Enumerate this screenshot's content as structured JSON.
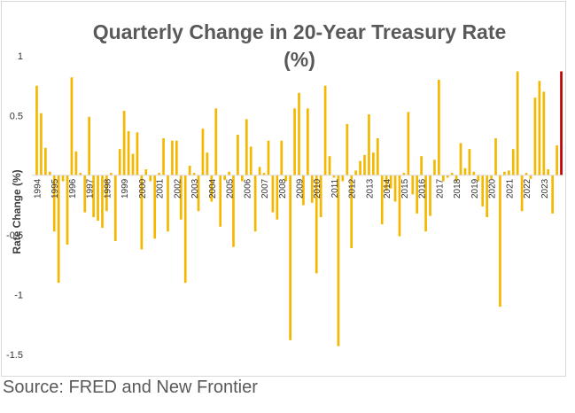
{
  "source_note": "Source: FRED and New Frontier",
  "colors": {
    "bar": "#f5b800",
    "highlight": "#c00000",
    "axis": "#d9d9d9",
    "title": "#595959"
  },
  "chart_data": {
    "type": "bar",
    "title_line1": "Quarterly Change in 20-Year Treasury Rate",
    "title_line2": "(%)",
    "ylabel": "Rate Change (%)",
    "xlabel": "",
    "ylim": [
      -1.5,
      1
    ],
    "yticks": [
      1,
      0.5,
      -0.5,
      -1,
      -1.5
    ],
    "ytick_labels": [
      "1",
      "0.5",
      "-0.5",
      "-1",
      "-1.5"
    ],
    "grid": false,
    "legend": "none",
    "start_year": 1994,
    "year_labels": [
      "1994",
      "1995",
      "1996",
      "1997",
      "1998",
      "1999",
      "2000",
      "2001",
      "2002",
      "2003",
      "2004",
      "2005",
      "2006",
      "2007",
      "2008",
      "2009",
      "2010",
      "2011",
      "2012",
      "2013",
      "2014",
      "2015",
      "2016",
      "2017",
      "2018",
      "2019",
      "2020",
      "2021",
      "2022",
      "2023"
    ],
    "highlight_last": true,
    "values": [
      0.75,
      0.52,
      0.23,
      0.03,
      -0.47,
      -0.9,
      -0.05,
      -0.58,
      0.82,
      0.2,
      0.02,
      -0.31,
      0.49,
      -0.35,
      -0.38,
      -0.44,
      -0.3,
      0.02,
      -0.55,
      0.22,
      0.54,
      0.37,
      0.18,
      0.36,
      -0.62,
      0.05,
      -0.05,
      -0.53,
      0.02,
      0.31,
      -0.47,
      0.29,
      0.29,
      -0.37,
      -0.9,
      0.08,
      0.02,
      -0.3,
      0.39,
      0.19,
      -0.22,
      0.56,
      -0.43,
      -0.04,
      0.03,
      -0.6,
      0.34,
      -0.05,
      0.47,
      0.24,
      -0.47,
      0.07,
      0.02,
      0.29,
      -0.31,
      -0.37,
      0.29,
      -0.05,
      -1.38,
      0.56,
      0.69,
      -0.25,
      0.56,
      -0.23,
      -0.82,
      -0.35,
      0.75,
      0.16,
      -0.02,
      -1.43,
      -0.05,
      0.43,
      -0.61,
      0.04,
      0.12,
      0.17,
      0.51,
      0.19,
      0.31,
      -0.41,
      -0.13,
      -0.11,
      -0.22,
      -0.51,
      0.02,
      0.53,
      -0.16,
      -0.32,
      0.16,
      -0.47,
      -0.34,
      0.13,
      0.8,
      -0.05,
      -0.02,
      0.02,
      -0.05,
      0.27,
      0.06,
      0.22,
      0.03,
      -0.05,
      -0.26,
      -0.35,
      -0.03,
      0.31,
      -1.1,
      0.03,
      0.04,
      0.22,
      0.87,
      -0.3,
      0.02,
      -0.03,
      0.65,
      0.79,
      0.7,
      0.05,
      -0.32,
      0.25,
      0.87
    ]
  }
}
